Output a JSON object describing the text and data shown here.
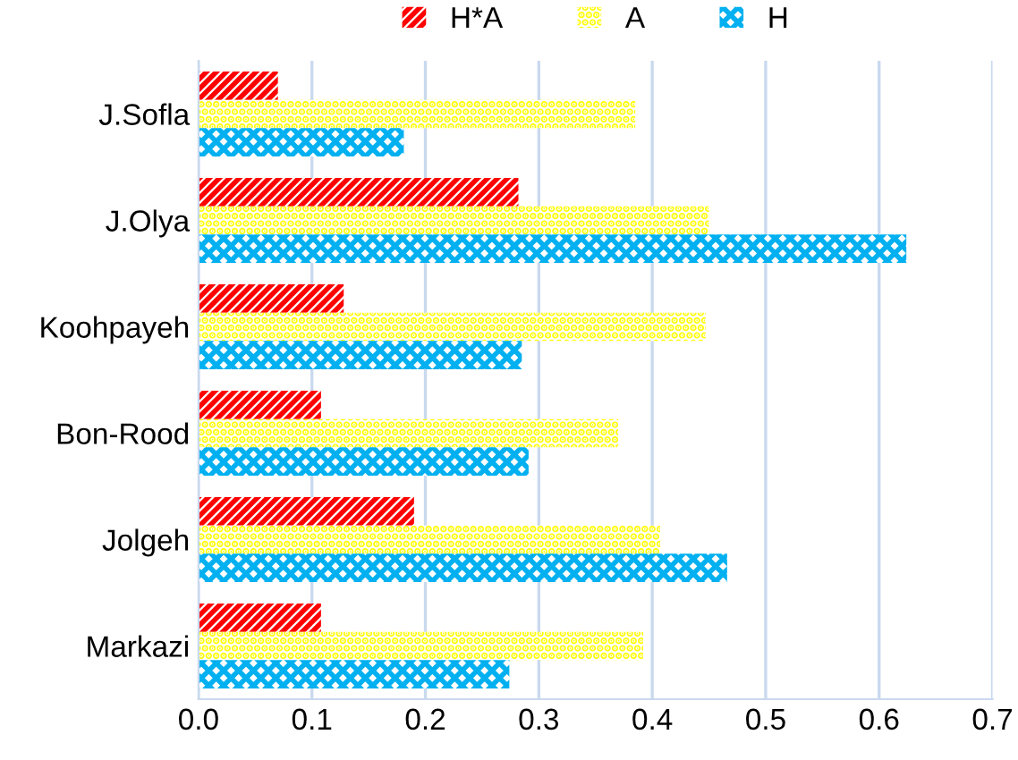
{
  "chart_data": {
    "type": "bar",
    "orientation": "horizontal",
    "legend": "top",
    "grid": "x",
    "categories": [
      "J.Sofla",
      "J.Olya",
      "Koohpayeh",
      "Bon-Rood",
      "Jolgeh",
      "Markazi"
    ],
    "series": [
      {
        "name": "H*A",
        "color": "#ff0000",
        "values": [
          0.07,
          0.282,
          0.128,
          0.108,
          0.19,
          0.108
        ]
      },
      {
        "name": "A",
        "color": "#ffff00",
        "values": [
          0.385,
          0.45,
          0.447,
          0.37,
          0.407,
          0.392
        ]
      },
      {
        "name": "H",
        "color": "#00b0f0",
        "values": [
          0.181,
          0.624,
          0.285,
          0.291,
          0.466,
          0.274
        ]
      }
    ],
    "xlim": [
      0,
      0.7
    ],
    "xticks": [
      {
        "value": 0,
        "label": "0.0"
      },
      0.1,
      0.2,
      0.3,
      0.4,
      0.5,
      0.6,
      0.7
    ]
  }
}
